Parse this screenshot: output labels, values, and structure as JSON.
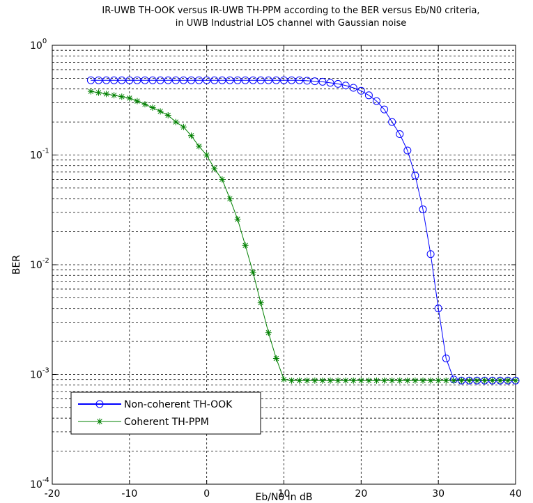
{
  "chart_data": {
    "type": "line",
    "title": "IR-UWB TH-OOK versus IR-UWB TH-PPM according to the BER versus Eb/N0 criteria,",
    "subtitle": "in UWB Industrial LOS channel with Gaussian noise",
    "xlabel": "Eb/N0 in dB",
    "ylabel": "BER",
    "xlim": [
      -20,
      40
    ],
    "ylim": [
      0.0001,
      1
    ],
    "yscale": "log",
    "grid": true,
    "legend_position": "bottom-left",
    "x_ticks": [
      -20,
      -10,
      0,
      10,
      20,
      30,
      40
    ],
    "x_tick_labels": [
      "-20",
      "-10",
      "0",
      "10",
      "20",
      "30",
      "40"
    ],
    "y_tick_values": [
      0.0001,
      0.001,
      0.01,
      0.1,
      1
    ],
    "y_tick_labels": [
      {
        "base": "10",
        "exp": "-4"
      },
      {
        "base": "10",
        "exp": "-3"
      },
      {
        "base": "10",
        "exp": "-2"
      },
      {
        "base": "10",
        "exp": "-1"
      },
      {
        "base": "10",
        "exp": "0"
      }
    ],
    "series": [
      {
        "name": "Non-coherent TH-OOK",
        "color": "#0000ff",
        "marker": "circle",
        "x": [
          -15,
          -14,
          -13,
          -12,
          -11,
          -10,
          -9,
          -8,
          -7,
          -6,
          -5,
          -4,
          -3,
          -2,
          -1,
          0,
          1,
          2,
          3,
          4,
          5,
          6,
          7,
          8,
          9,
          10,
          11,
          12,
          13,
          14,
          15,
          16,
          17,
          18,
          19,
          20,
          21,
          22,
          23,
          24,
          25,
          26,
          27,
          28,
          29,
          30,
          31,
          32,
          33,
          34,
          35,
          36,
          37,
          38,
          39,
          40
        ],
        "y": [
          0.48,
          0.48,
          0.48,
          0.48,
          0.48,
          0.48,
          0.48,
          0.48,
          0.48,
          0.48,
          0.48,
          0.48,
          0.48,
          0.48,
          0.48,
          0.48,
          0.48,
          0.48,
          0.48,
          0.48,
          0.48,
          0.48,
          0.48,
          0.48,
          0.48,
          0.48,
          0.48,
          0.48,
          0.475,
          0.47,
          0.465,
          0.455,
          0.445,
          0.43,
          0.41,
          0.385,
          0.35,
          0.31,
          0.26,
          0.2,
          0.155,
          0.11,
          0.065,
          0.032,
          0.0125,
          0.004,
          0.0014,
          0.0009,
          0.00088,
          0.00088,
          0.00088,
          0.00088,
          0.00088,
          0.00088,
          0.00088,
          0.00088
        ]
      },
      {
        "name": "Coherent TH-PPM",
        "color": "#008000",
        "marker": "star",
        "x": [
          -15,
          -14,
          -13,
          -12,
          -11,
          -10,
          -9,
          -8,
          -7,
          -6,
          -5,
          -4,
          -3,
          -2,
          -1,
          0,
          1,
          2,
          3,
          4,
          5,
          6,
          7,
          8,
          9,
          10,
          11,
          12,
          13,
          14,
          15,
          16,
          17,
          18,
          19,
          20,
          21,
          22,
          23,
          24,
          25,
          26,
          27,
          28,
          29,
          30,
          31,
          32,
          33,
          34,
          35,
          36,
          37,
          38,
          39,
          40
        ],
        "y": [
          0.38,
          0.37,
          0.36,
          0.35,
          0.34,
          0.33,
          0.31,
          0.29,
          0.27,
          0.25,
          0.23,
          0.2,
          0.18,
          0.15,
          0.12,
          0.1,
          0.075,
          0.06,
          0.04,
          0.026,
          0.015,
          0.0085,
          0.0045,
          0.0024,
          0.0014,
          0.0009,
          0.00088,
          0.00088,
          0.00088,
          0.00088,
          0.00088,
          0.00088,
          0.00088,
          0.00088,
          0.00088,
          0.00088,
          0.00088,
          0.00088,
          0.00088,
          0.00088,
          0.00088,
          0.00088,
          0.00088,
          0.00088,
          0.00088,
          0.00088,
          0.00088,
          0.00088,
          0.00088,
          0.00088,
          0.00088,
          0.00088,
          0.00088,
          0.00088,
          0.00088,
          0.00088
        ]
      }
    ]
  }
}
